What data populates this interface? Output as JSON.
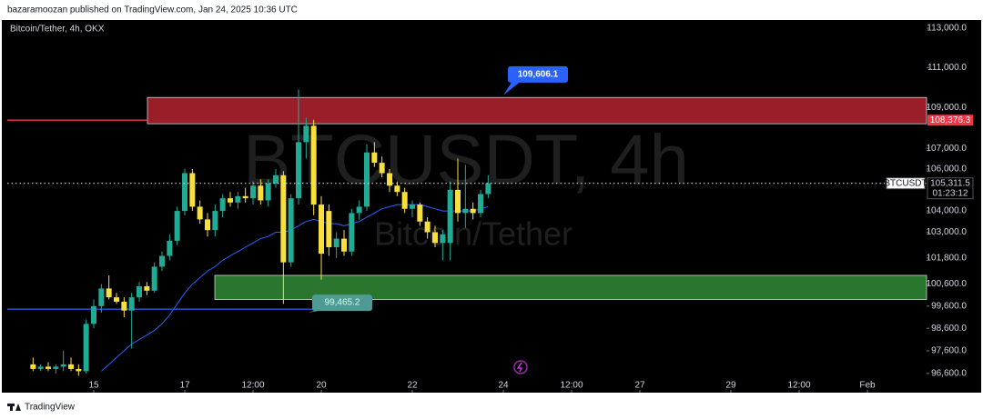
{
  "header": {
    "publisher": "bazaramoozan published on TradingView.com, Jan 24, 2025 10:36 UTC"
  },
  "footer": {
    "brand": "TradingView"
  },
  "chart_data": {
    "type": "candlestick",
    "symbol_label": "Bitcoin/Tether, 4h, OKX",
    "watermark": "BTCUSDT, 4h",
    "watermark_sub": "Bitcoin/Tether",
    "log_scale": true,
    "xlim": [
      13.1,
      33.3
    ],
    "ylim": [
      96000,
      113420
    ],
    "xticks": [
      15,
      17,
      {
        "value": 18.5,
        "label": "12:00"
      },
      20,
      22,
      24,
      {
        "value": 25.5,
        "label": "12:00"
      },
      27,
      29,
      {
        "value": 30.5,
        "label": "12:00"
      },
      {
        "value": 32,
        "label": "Feb"
      }
    ],
    "yticks": [
      {
        "value": 96600,
        "label": "96,600.0"
      },
      {
        "value": 97600,
        "label": "97,600.0"
      },
      {
        "value": 98600,
        "label": "98,600.0"
      },
      {
        "value": 99600,
        "label": "99,600.0"
      },
      {
        "value": 100600,
        "label": "100,600.0"
      },
      {
        "value": 101800,
        "label": "101,800.0"
      },
      {
        "value": 103000,
        "label": "103,000.0"
      },
      {
        "value": 104000,
        "label": "104,000.0"
      },
      {
        "value": 106000,
        "label": "106,000.0"
      },
      {
        "value": 107000,
        "label": "107,000.0"
      },
      {
        "value": 109000,
        "label": "109,000.0"
      },
      {
        "value": 111000,
        "label": "111,000.0"
      },
      {
        "value": 113000,
        "label": "113,000.0"
      }
    ],
    "x": [
      13.667,
      13.833,
      14.0,
      14.167,
      14.333,
      14.5,
      14.667,
      14.833,
      15.0,
      15.167,
      15.333,
      15.5,
      15.667,
      15.833,
      16.0,
      16.167,
      16.333,
      16.5,
      16.667,
      16.833,
      17.0,
      17.167,
      17.333,
      17.5,
      17.667,
      17.833,
      18.0,
      18.167,
      18.333,
      18.5,
      18.667,
      18.833,
      19.0,
      19.167,
      19.333,
      19.5,
      19.667,
      19.833,
      20.0,
      20.167,
      20.333,
      20.5,
      20.667,
      20.833,
      21.0,
      21.167,
      21.333,
      21.5,
      21.667,
      21.833,
      22.0,
      22.167,
      22.333,
      22.5,
      22.667,
      22.833,
      23.0,
      23.167,
      23.333,
      23.5,
      23.667
    ],
    "candles": {
      "name": "BTCUSDT",
      "up_color": "#22ab94",
      "down_color": "#f7e03c",
      "open": [
        97000,
        96800,
        96900,
        96800,
        96900,
        97000,
        96800,
        96700,
        98800,
        99600,
        100400,
        100000,
        99800,
        99400,
        100000,
        100500,
        100300,
        101400,
        101900,
        102600,
        104000,
        105800,
        104200,
        103600,
        103100,
        104000,
        104600,
        104400,
        104700,
        104600,
        105200,
        104500,
        105300,
        105700,
        101600,
        104600,
        107300,
        108100,
        104300,
        104000,
        102300,
        102700,
        102100,
        103900,
        104200,
        106800,
        106300,
        105800,
        105200,
        104900,
        104100,
        104300,
        103500,
        103000,
        102500,
        102500,
        105000,
        103900,
        104100,
        103900,
        104800
      ],
      "high": [
        97300,
        97000,
        97100,
        97000,
        97600,
        97300,
        97000,
        99000,
        99900,
        100600,
        101000,
        100200,
        100000,
        100200,
        100700,
        100700,
        101600,
        102100,
        102900,
        104200,
        106000,
        106000,
        104500,
        103900,
        104300,
        104800,
        104900,
        104900,
        105100,
        105400,
        105500,
        105500,
        106000,
        105900,
        104800,
        109900,
        108500,
        108400,
        104700,
        104300,
        103000,
        103100,
        104100,
        104500,
        107200,
        107300,
        106600,
        106000,
        105400,
        105100,
        104500,
        104400,
        103700,
        103300,
        103100,
        105400,
        106500,
        106200,
        104400,
        105000,
        105700
      ],
      "low": [
        96700,
        96700,
        96700,
        96600,
        96700,
        96700,
        96500,
        96600,
        98600,
        99300,
        99900,
        99700,
        99100,
        97700,
        99800,
        100100,
        100200,
        101200,
        101700,
        102400,
        103800,
        104000,
        103400,
        102800,
        102800,
        103700,
        104200,
        104100,
        104400,
        104300,
        104300,
        104200,
        105100,
        99700,
        101400,
        104300,
        106500,
        103800,
        100800,
        101900,
        101800,
        101900,
        101900,
        103600,
        104000,
        106100,
        105600,
        104900,
        104700,
        103900,
        103700,
        103300,
        102700,
        102300,
        101700,
        101700,
        103500,
        103200,
        103600,
        103700,
        104600
      ],
      "close": [
        96800,
        96900,
        96800,
        96900,
        97000,
        96800,
        96700,
        98800,
        99600,
        100400,
        100000,
        99800,
        99400,
        100000,
        100500,
        100300,
        101400,
        101900,
        102600,
        104000,
        105800,
        104200,
        103600,
        103100,
        104000,
        104600,
        104400,
        104700,
        104600,
        105200,
        104500,
        105300,
        105700,
        101600,
        104600,
        107300,
        108100,
        104300,
        102000,
        102300,
        102700,
        102100,
        103900,
        104200,
        106800,
        106300,
        105800,
        105200,
        104900,
        104100,
        104300,
        103500,
        103000,
        102500,
        102900,
        105000,
        103900,
        104100,
        103900,
        104800,
        105311.5
      ]
    },
    "last_price_label": "105,311.5",
    "countdown": "01:23:12",
    "ema": {
      "color": "#2962ff",
      "values": [
        null,
        null,
        null,
        null,
        null,
        null,
        null,
        null,
        null,
        96700,
        97000,
        97300,
        97600,
        97900,
        98100,
        98300,
        98500,
        98800,
        99200,
        99700,
        100200,
        100600,
        100900,
        101200,
        101400,
        101700,
        101900,
        102100,
        102300,
        102500,
        102700,
        102800,
        103000,
        103000,
        103100,
        103300,
        103500,
        103600,
        103500,
        103400,
        103400,
        103300,
        103400,
        103500,
        103700,
        103900,
        104100,
        104200,
        104300,
        104300,
        104300,
        104300,
        104200,
        104100,
        104000,
        104000,
        104000,
        104000,
        104000,
        104100,
        104200
      ]
    },
    "zones": [
      {
        "range": [
          108200,
          109500
        ],
        "x_start": 16.18,
        "color": "#a3202c"
      },
      {
        "range": [
          99900,
          101000
        ],
        "x_start": 17.66,
        "color": "#2e7d32"
      }
    ],
    "levels": [
      {
        "value": 108376.3,
        "label": "108,376.3",
        "x_end": 16.18,
        "color": "#f23645"
      },
      {
        "value": 99465.2,
        "x_end": 19.84,
        "color": "#2962ff"
      }
    ],
    "callouts": [
      {
        "value": 109606.1,
        "label": "109,606.1",
        "x": 24.7,
        "color": "#2962ff"
      },
      {
        "value": 99465.2,
        "label": "99,465.2",
        "x": 20.4,
        "color": "#4f9a94"
      }
    ]
  }
}
